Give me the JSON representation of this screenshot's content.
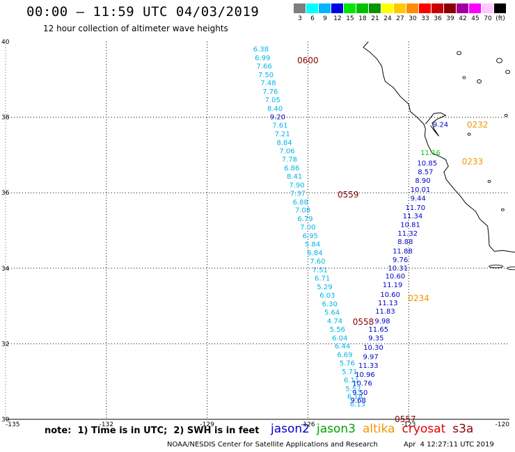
{
  "header": {
    "title": "00:00 – 11:59 UTC 04/03/2019",
    "subtitle": "12 hour collection of altimeter wave heights"
  },
  "colorbar": {
    "cells": [
      {
        "color": "#7f7f7f",
        "label": "3"
      },
      {
        "color": "#00ffff",
        "label": "6"
      },
      {
        "color": "#00b4ff",
        "label": "9"
      },
      {
        "color": "#0000e6",
        "label": "12"
      },
      {
        "color": "#00e600",
        "label": "15"
      },
      {
        "color": "#00be00",
        "label": "18"
      },
      {
        "color": "#009600",
        "label": "21"
      },
      {
        "color": "#ffff00",
        "label": "24"
      },
      {
        "color": "#ffc800",
        "label": "27"
      },
      {
        "color": "#ff8c00",
        "label": "30"
      },
      {
        "color": "#ff0000",
        "label": "33"
      },
      {
        "color": "#c80000",
        "label": "36"
      },
      {
        "color": "#8b0000",
        "label": "39"
      },
      {
        "color": "#a000a0",
        "label": "42"
      },
      {
        "color": "#ff00ff",
        "label": "45"
      },
      {
        "color": "#ffc8ff",
        "label": "70"
      },
      {
        "color": "#000000",
        "label": "(ft)"
      }
    ]
  },
  "axes": {
    "x_ticks": [
      "-135",
      "-132",
      "-129",
      "-126",
      "-123",
      "-120"
    ],
    "y_ticks": [
      "40",
      "38",
      "36",
      "34",
      "32",
      "30"
    ],
    "lon_range": [
      -135,
      -120
    ],
    "lat_range": [
      30,
      40
    ],
    "grid": true
  },
  "colors": {
    "light_blue": "#00b4e6",
    "dark_blue": "#0000c8",
    "green": "#00c800",
    "orange": "#f09600",
    "dark_red": "#8b0000",
    "coast": "#000000"
  },
  "tracks": [
    {
      "satellite": "s3a",
      "time_label": "0600",
      "label_pos": [
        -126.0,
        39.5
      ],
      "points": [
        {
          "lon": -127.4,
          "lat": 39.8,
          "v": "6.38",
          "c": "light_blue"
        },
        {
          "lon": -127.35,
          "lat": 39.57,
          "v": "6.99",
          "c": "light_blue"
        },
        {
          "lon": -127.3,
          "lat": 39.35,
          "v": "7.66",
          "c": "light_blue"
        },
        {
          "lon": -127.25,
          "lat": 39.12,
          "v": "7.50",
          "c": "light_blue"
        },
        {
          "lon": -127.18,
          "lat": 38.9,
          "v": "7.48",
          "c": "light_blue"
        },
        {
          "lon": -127.12,
          "lat": 38.67,
          "v": "7.76",
          "c": "light_blue"
        },
        {
          "lon": -127.05,
          "lat": 38.45,
          "v": "7.05",
          "c": "light_blue"
        },
        {
          "lon": -126.98,
          "lat": 38.22,
          "v": "8.40",
          "c": "light_blue"
        },
        {
          "lon": -126.9,
          "lat": 38.0,
          "v": "9.20",
          "c": "dark_blue"
        },
        {
          "lon": -126.83,
          "lat": 37.78,
          "v": "7.61",
          "c": "light_blue"
        },
        {
          "lon": -126.76,
          "lat": 37.55,
          "v": "7.21",
          "c": "light_blue"
        },
        {
          "lon": -126.7,
          "lat": 37.32,
          "v": "8.84",
          "c": "light_blue"
        },
        {
          "lon": -126.62,
          "lat": 37.1,
          "v": "7.06",
          "c": "light_blue"
        },
        {
          "lon": -126.55,
          "lat": 36.88,
          "v": "7.78",
          "c": "light_blue"
        },
        {
          "lon": -126.48,
          "lat": 36.65,
          "v": "6.86",
          "c": "light_blue"
        },
        {
          "lon": -126.4,
          "lat": 36.43,
          "v": "8.41",
          "c": "light_blue"
        },
        {
          "lon": -126.33,
          "lat": 36.2,
          "v": "7.90",
          "c": "light_blue"
        }
      ]
    },
    {
      "satellite": "s3a",
      "time_label": "0559",
      "label_pos": [
        -124.8,
        35.95
      ],
      "points": [
        {
          "lon": -126.3,
          "lat": 35.98,
          "v": "7.37",
          "c": "light_blue"
        },
        {
          "lon": -126.22,
          "lat": 35.75,
          "v": "6.88",
          "c": "light_blue"
        },
        {
          "lon": -126.15,
          "lat": 35.53,
          "v": "7.08",
          "c": "light_blue"
        },
        {
          "lon": -126.08,
          "lat": 35.3,
          "v": "6.79",
          "c": "light_blue"
        },
        {
          "lon": -126.0,
          "lat": 35.08,
          "v": "7.00",
          "c": "light_blue"
        },
        {
          "lon": -125.93,
          "lat": 34.85,
          "v": "6.95",
          "c": "light_blue"
        },
        {
          "lon": -125.86,
          "lat": 34.63,
          "v": "5.84",
          "c": "light_blue"
        },
        {
          "lon": -125.79,
          "lat": 34.4,
          "v": "6.84",
          "c": "light_blue"
        },
        {
          "lon": -125.71,
          "lat": 34.18,
          "v": "7.60",
          "c": "light_blue"
        },
        {
          "lon": -125.64,
          "lat": 33.95,
          "v": "7.51",
          "c": "light_blue"
        },
        {
          "lon": -125.57,
          "lat": 33.73,
          "v": "6.71",
          "c": "light_blue"
        },
        {
          "lon": -125.5,
          "lat": 33.5,
          "v": "5.29",
          "c": "light_blue"
        },
        {
          "lon": -125.42,
          "lat": 33.28,
          "v": "6.03",
          "c": "light_blue"
        },
        {
          "lon": -125.35,
          "lat": 33.05,
          "v": "6.30",
          "c": "light_blue"
        },
        {
          "lon": -125.28,
          "lat": 32.83,
          "v": "5.64",
          "c": "light_blue"
        },
        {
          "lon": -125.2,
          "lat": 32.6,
          "v": "4.74",
          "c": "light_blue"
        }
      ]
    },
    {
      "satellite": "s3a",
      "time_label": "0558",
      "label_pos": [
        -124.35,
        32.58
      ],
      "points": [
        {
          "lon": -125.12,
          "lat": 32.38,
          "v": "5.56",
          "c": "light_blue"
        },
        {
          "lon": -125.05,
          "lat": 32.15,
          "v": "6.04",
          "c": "light_blue"
        },
        {
          "lon": -124.97,
          "lat": 31.93,
          "v": "6.44",
          "c": "light_blue"
        },
        {
          "lon": -124.9,
          "lat": 31.7,
          "v": "6.69",
          "c": "light_blue"
        },
        {
          "lon": -124.83,
          "lat": 31.48,
          "v": "5.76",
          "c": "light_blue"
        },
        {
          "lon": -124.76,
          "lat": 31.25,
          "v": "5.71",
          "c": "light_blue"
        },
        {
          "lon": -124.7,
          "lat": 31.03,
          "v": "6.11",
          "c": "light_blue"
        },
        {
          "lon": -124.65,
          "lat": 30.8,
          "v": "5.57",
          "c": "light_blue"
        },
        {
          "lon": -124.6,
          "lat": 30.6,
          "v": "6.18",
          "c": "light_blue"
        },
        {
          "lon": -124.52,
          "lat": 30.4,
          "v": "6.13",
          "c": "light_blue"
        }
      ]
    },
    {
      "satellite": "jason2",
      "time_label": "0557",
      "label_pos": [
        -123.1,
        30.0
      ],
      "points": [
        {
          "lon": -124.5,
          "lat": 30.5,
          "v": "9.68",
          "c": "dark_blue"
        },
        {
          "lon": -124.45,
          "lat": 30.7,
          "v": "9.50",
          "c": "dark_blue"
        },
        {
          "lon": -124.38,
          "lat": 30.95,
          "v": "10.76",
          "c": "dark_blue"
        },
        {
          "lon": -124.3,
          "lat": 31.18,
          "v": "10.96",
          "c": "dark_blue"
        },
        {
          "lon": -124.2,
          "lat": 31.42,
          "v": "11.33",
          "c": "dark_blue"
        },
        {
          "lon": -124.13,
          "lat": 31.65,
          "v": "9.97",
          "c": "dark_blue"
        },
        {
          "lon": -124.05,
          "lat": 31.9,
          "v": "10.30",
          "c": "dark_blue"
        },
        {
          "lon": -123.97,
          "lat": 32.15,
          "v": "9.35",
          "c": "dark_blue"
        },
        {
          "lon": -123.9,
          "lat": 32.38,
          "v": "11.65",
          "c": "dark_blue"
        },
        {
          "lon": -123.78,
          "lat": 32.6,
          "v": "9.98",
          "c": "dark_blue"
        }
      ]
    },
    {
      "satellite": "altika",
      "time_label": "0234",
      "label_pos": [
        -122.7,
        33.2
      ],
      "points": [
        {
          "lon": -123.7,
          "lat": 32.85,
          "v": "11.83",
          "c": "dark_blue"
        },
        {
          "lon": -123.62,
          "lat": 33.08,
          "v": "11.13",
          "c": "dark_blue"
        },
        {
          "lon": -123.55,
          "lat": 33.3,
          "v": "10.60",
          "c": "dark_blue"
        },
        {
          "lon": -123.48,
          "lat": 33.55,
          "v": "11.19",
          "c": "dark_blue"
        },
        {
          "lon": -123.4,
          "lat": 33.78,
          "v": "10.60",
          "c": "dark_blue"
        },
        {
          "lon": -123.32,
          "lat": 34.0,
          "v": "10.31",
          "c": "dark_blue"
        },
        {
          "lon": -123.25,
          "lat": 34.22,
          "v": "9.76",
          "c": "dark_blue"
        },
        {
          "lon": -123.18,
          "lat": 34.45,
          "v": "11.88",
          "c": "dark_blue"
        },
        {
          "lon": -123.1,
          "lat": 34.7,
          "v": "8.88",
          "c": "dark_blue"
        },
        {
          "lon": -123.03,
          "lat": 34.92,
          "v": "11.32",
          "c": "dark_blue"
        },
        {
          "lon": -122.95,
          "lat": 35.15,
          "v": "10.81",
          "c": "dark_blue"
        },
        {
          "lon": -122.88,
          "lat": 35.38,
          "v": "11.34",
          "c": "dark_blue"
        },
        {
          "lon": -122.8,
          "lat": 35.6,
          "v": "11.70",
          "c": "dark_blue"
        },
        {
          "lon": -122.72,
          "lat": 35.85,
          "v": "9.44",
          "c": "dark_blue"
        },
        {
          "lon": -122.65,
          "lat": 36.08,
          "v": "10.01",
          "c": "dark_blue"
        },
        {
          "lon": -122.58,
          "lat": 36.32,
          "v": "8.90",
          "c": "dark_blue"
        },
        {
          "lon": -122.5,
          "lat": 36.55,
          "v": "8.57",
          "c": "dark_blue"
        }
      ]
    },
    {
      "satellite": "altika",
      "time_label": "0233",
      "label_pos": [
        -121.1,
        36.82
      ],
      "points": [
        {
          "lon": -122.45,
          "lat": 36.78,
          "v": "10.85",
          "c": "dark_blue"
        },
        {
          "lon": -122.35,
          "lat": 37.05,
          "v": "11.16",
          "c": "green"
        }
      ]
    },
    {
      "satellite": "altika",
      "time_label": "0232",
      "label_pos": [
        -120.95,
        37.8
      ],
      "points": [
        {
          "lon": -122.05,
          "lat": 37.8,
          "v": "9.24",
          "c": "dark_blue"
        }
      ]
    }
  ],
  "label_colors": {
    "s3a": "dark_red",
    "jason2": "dark_red",
    "altika": "orange"
  },
  "footer": {
    "note": "note:  1) Time is in UTC;  2) SWH is in feet",
    "legend": [
      {
        "name": "jason2",
        "color": "#0000c8"
      },
      {
        "name": "jason3",
        "color": "#00a000"
      },
      {
        "name": "altika",
        "color": "#f09600"
      },
      {
        "name": "cryosat",
        "color": "#e60000"
      },
      {
        "name": "s3a",
        "color": "#8b0000"
      }
    ],
    "credit": "NOAA/NESDIS Center for Satellite Applications and Research",
    "timestamp": "Apr  4 12:27:11 UTC 2019"
  }
}
